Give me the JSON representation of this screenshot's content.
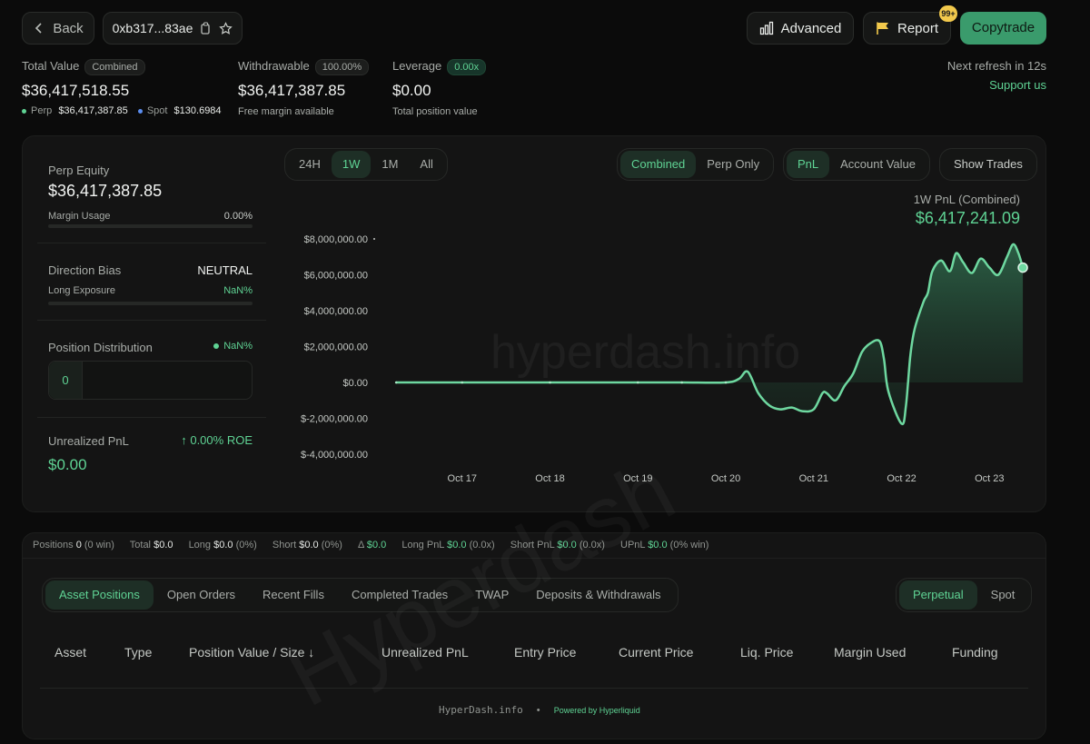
{
  "header": {
    "back_label": "Back",
    "address": "0xb317...83ae",
    "advanced_label": "Advanced",
    "report_label": "Report",
    "report_badge": "99+",
    "copytrade_label": "Copytrade",
    "refresh_text": "Next refresh in 12s",
    "support_label": "Support us"
  },
  "summary": {
    "total_value_label": "Total Value",
    "total_value_tag": "Combined",
    "total_value": "$36,417,518.55",
    "perp_label": "Perp",
    "perp_value": "$36,417,387.85",
    "spot_label": "Spot",
    "spot_value": "$130.6984",
    "withdrawable_label": "Withdrawable",
    "withdrawable_tag": "100.00%",
    "withdrawable_value": "$36,417,387.85",
    "withdrawable_sub": "Free margin available",
    "leverage_label": "Leverage",
    "leverage_tag": "0.00x",
    "leverage_value": "$0.00",
    "leverage_sub": "Total position value"
  },
  "left_panel": {
    "perp_equity_label": "Perp Equity",
    "perp_equity_value": "$36,417,387.85",
    "margin_usage_label": "Margin Usage",
    "margin_usage_value": "0.00%",
    "direction_bias_label": "Direction Bias",
    "direction_bias_value": "NEUTRAL",
    "long_exposure_label": "Long Exposure",
    "long_exposure_value": "NaN%",
    "position_distribution_label": "Position Distribution",
    "position_distribution_value": "NaN%",
    "position_count": "0",
    "unrealized_pnl_label": "Unrealized PnL",
    "roe_value": "0.00% ROE",
    "unrealized_pnl_value": "$0.00"
  },
  "chart_controls": {
    "ranges": [
      "24H",
      "1W",
      "1M",
      "All"
    ],
    "active_range": "1W",
    "modes": [
      "Combined",
      "Perp Only"
    ],
    "active_mode": "Combined",
    "metrics": [
      "PnL",
      "Account Value"
    ],
    "active_metric": "PnL",
    "show_trades_label": "Show Trades"
  },
  "chart_data": {
    "type": "area",
    "title": "1W PnL (Combined)",
    "headline_value": "$6,417,241.09",
    "watermark": "hyperdash.info",
    "x_ticks": [
      "Oct 17",
      "Oct 18",
      "Oct 19",
      "Oct 20",
      "Oct 21",
      "Oct 22",
      "Oct 23"
    ],
    "y_ticks": [
      "$8,000,000.00",
      "$6,000,000.00",
      "$4,000,000.00",
      "$2,000,000.00",
      "$0.00",
      "$-2,000,000.00",
      "$-4,000,000.00"
    ],
    "ylim": [
      -4000000,
      8000000
    ],
    "xlim": [
      16.0,
      23.4
    ],
    "series": [
      {
        "x": [
          16.25,
          17.0,
          18.0,
          19.0,
          19.5,
          20.0,
          20.15,
          20.25,
          20.37,
          20.5,
          20.62,
          20.75,
          20.87,
          21.0,
          21.1,
          21.15,
          21.25,
          21.35,
          21.45,
          21.55,
          21.65,
          21.75,
          21.8,
          21.85,
          22.0,
          22.05,
          22.1,
          22.15,
          22.25,
          22.3,
          22.35,
          22.45,
          22.55,
          22.62,
          22.7,
          22.8,
          22.9,
          23.0,
          23.1,
          23.2,
          23.27,
          23.33,
          23.38
        ],
        "values": [
          0,
          0,
          0,
          0,
          0,
          0,
          200000,
          600000,
          -600000,
          -1300000,
          -1500000,
          -1400000,
          -1600000,
          -1500000,
          -600000,
          -600000,
          -1000000,
          -200000,
          500000,
          1700000,
          2200000,
          2300000,
          1300000,
          -500000,
          -2300000,
          -1300000,
          1500000,
          3000000,
          4500000,
          5000000,
          6200000,
          6800000,
          6200000,
          7200000,
          6700000,
          6100000,
          6900000,
          6400000,
          6000000,
          7000000,
          7700000,
          7200000,
          6400000
        ]
      }
    ]
  },
  "stats_bar": {
    "positions_label": "Positions",
    "positions_value": "0",
    "positions_sub": "(0 win)",
    "total_label": "Total",
    "total_value": "$0.0",
    "long_label": "Long",
    "long_value": "$0.0",
    "long_sub": "(0%)",
    "short_label": "Short",
    "short_value": "$0.0",
    "short_sub": "(0%)",
    "delta_label": "Δ",
    "delta_value": "$0.0",
    "long_pnl_label": "Long PnL",
    "long_pnl_value": "$0.0",
    "long_pnl_sub": "(0.0x)",
    "short_pnl_label": "Short PnL",
    "short_pnl_value": "$0.0",
    "short_pnl_sub": "(0.0x)",
    "upnl_label": "UPnL",
    "upnl_value": "$0.0",
    "upnl_sub": "(0% win)"
  },
  "tabs": {
    "items": [
      "Asset Positions",
      "Open Orders",
      "Recent Fills",
      "Completed Trades",
      "TWAP",
      "Deposits & Withdrawals"
    ],
    "active": "Asset Positions",
    "market": [
      "Perpetual",
      "Spot"
    ],
    "active_market": "Perpetual"
  },
  "table": {
    "columns": [
      "Asset",
      "Type",
      "Position Value / Size",
      "Unrealized PnL",
      "Entry Price",
      "Current Price",
      "Liq. Price",
      "Margin Used",
      "Funding"
    ],
    "rows": []
  },
  "footer": {
    "brand": "HyperDash.info",
    "powered": "Powered by Hyperliquid",
    "watermark": "Hyperdash"
  },
  "colors": {
    "accent": "#5fd394",
    "copytrade_bg": "#3a9b6c",
    "background": "#0b0b0b",
    "spot_dot": "#5b8def",
    "report_badge": "#f2c94c"
  }
}
